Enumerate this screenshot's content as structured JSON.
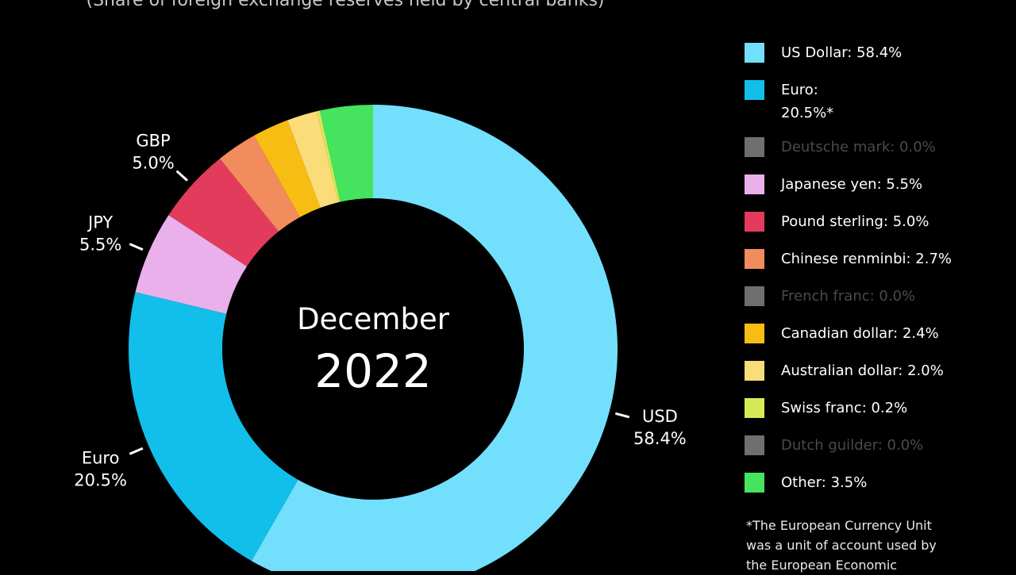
{
  "subtitle": "(Share of foreign exchange reserves held by central banks)",
  "center": {
    "month": "December",
    "year": "2022"
  },
  "chart_data": {
    "type": "pie",
    "style": "donut",
    "unit": "%",
    "slices": [
      {
        "name": "US Dollar",
        "value": 58.4,
        "color": "#72e0fc"
      },
      {
        "name": "Euro",
        "value": 20.5,
        "color": "#12bfea"
      },
      {
        "name": "Deutsche mark",
        "value": 0.0,
        "color": "#6f6f6f"
      },
      {
        "name": "Japanese yen",
        "value": 5.5,
        "color": "#e9b0ec"
      },
      {
        "name": "Pound sterling",
        "value": 5.0,
        "color": "#e33b5c"
      },
      {
        "name": "Chinese renminbi",
        "value": 2.7,
        "color": "#f28c5c"
      },
      {
        "name": "French franc",
        "value": 0.0,
        "color": "#6f6f6f"
      },
      {
        "name": "Canadian dollar",
        "value": 2.4,
        "color": "#f7bd13"
      },
      {
        "name": "Australian dollar",
        "value": 2.0,
        "color": "#fadc78"
      },
      {
        "name": "Swiss franc",
        "value": 0.2,
        "color": "#d6ea56"
      },
      {
        "name": "Dutch guilder",
        "value": 0.0,
        "color": "#6f6f6f"
      },
      {
        "name": "Other",
        "value": 3.5,
        "color": "#46e45e"
      }
    ],
    "callouts": [
      {
        "label": "USD",
        "value": "58.4%"
      },
      {
        "label": "Euro",
        "value": "20.5%"
      },
      {
        "label": "JPY",
        "value": "5.5%"
      },
      {
        "label": "GBP",
        "value": "5.0%"
      }
    ]
  },
  "legend": [
    {
      "text": "US Dollar: 58.4%",
      "color": "#72e0fc",
      "muted": false
    },
    {
      "text": "Euro:\n20.5%*",
      "color": "#12bfea",
      "muted": false
    },
    {
      "text": "Deutsche mark: 0.0%",
      "color": "#6f6f6f",
      "muted": true
    },
    {
      "text": "Japanese yen: 5.5%",
      "color": "#e9b0ec",
      "muted": false
    },
    {
      "text": "Pound sterling: 5.0%",
      "color": "#e33b5c",
      "muted": false
    },
    {
      "text": "Chinese renminbi: 2.7%",
      "color": "#f28c5c",
      "muted": false
    },
    {
      "text": "French franc: 0.0%",
      "color": "#6f6f6f",
      "muted": true
    },
    {
      "text": "Canadian dollar: 2.4%",
      "color": "#f7bd13",
      "muted": false
    },
    {
      "text": "Australian dollar: 2.0%",
      "color": "#fadc78",
      "muted": false
    },
    {
      "text": "Swiss franc: 0.2%",
      "color": "#d6ea56",
      "muted": false
    },
    {
      "text": "Dutch guilder: 0.0%",
      "color": "#6f6f6f",
      "muted": true
    },
    {
      "text": "Other: 3.5%",
      "color": "#46e45e",
      "muted": false
    }
  ],
  "footnote": "*The European Currency Unit\nwas a unit of account used by\nthe European Economic"
}
